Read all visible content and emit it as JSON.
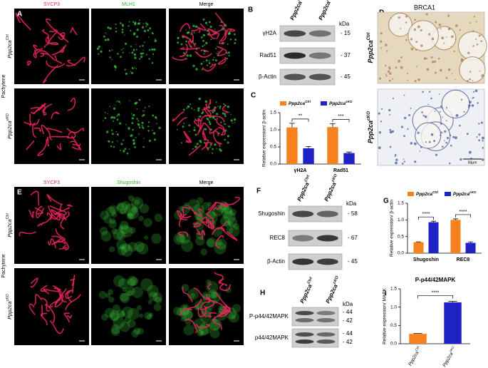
{
  "common": {
    "gene": "Ppp2ca",
    "ctrl": "Ctrl",
    "cko": "cKO",
    "ko": "KO",
    "stage": "Pachytene",
    "kda": "kDa"
  },
  "panel_a": {
    "letter": "A",
    "headers": [
      "SYCP3",
      "MLH1",
      "Merge"
    ]
  },
  "panel_b": {
    "letter": "B",
    "rows": [
      {
        "label": "γH2A",
        "kda": "- 15"
      },
      {
        "label": "Rad51",
        "kda": "- 37"
      },
      {
        "label": "β-Actin",
        "kda": "- 45"
      }
    ]
  },
  "panel_c": {
    "letter": "C"
  },
  "panel_d": {
    "letter": "D",
    "title": "BRCA1",
    "scale_bar": "50μm"
  },
  "panel_e": {
    "letter": "E",
    "headers": [
      "SYCP3",
      "Shugoshin",
      "Merge"
    ]
  },
  "panel_f": {
    "letter": "F",
    "rows": [
      {
        "label": "Shugoshin",
        "kda": "- 58"
      },
      {
        "label": "REC8",
        "kda": "- 67"
      },
      {
        "label": "β-Actin",
        "kda": "- 45"
      }
    ]
  },
  "panel_g": {
    "letter": "G"
  },
  "panel_h": {
    "letter": "H",
    "rows": [
      {
        "label": "P-p44/42MAPK",
        "kda": [
          "- 44",
          "- 42"
        ]
      },
      {
        "label": "p44/42MAPK",
        "kda": [
          "- 44",
          "- 42"
        ]
      }
    ]
  },
  "panel_i": {
    "letter": "I"
  },
  "chart_data": [
    {
      "type": "bar",
      "y_label": "Relative expression/ β-actin",
      "categories": [
        "γH2A",
        "Rad51"
      ],
      "series": [
        {
          "name": "Ppp2ca",
          "name_sup": "Ctrl",
          "color": "#f5821f",
          "values": [
            1.07,
            1.08
          ],
          "errors": [
            0.12,
            0.1
          ]
        },
        {
          "name": "Ppp2ca",
          "name_sup": "cKO",
          "color": "#1f22c4",
          "values": [
            0.46,
            0.32
          ],
          "errors": [
            0.05,
            0.03
          ]
        }
      ],
      "ylim": [
        0,
        1.5
      ],
      "yticks": [
        {
          "value": 0,
          "label": "0.0"
        },
        0.5,
        {
          "value": 1,
          "label": "1.0"
        },
        1.5
      ],
      "significance": [
        "**",
        "***"
      ]
    },
    {
      "type": "bar",
      "y_label": "Relative expression/ β-actin",
      "categories": [
        "Shugoshin",
        "REC8"
      ],
      "series": [
        {
          "name": "Ppp2ca",
          "name_sup": "Ctrl",
          "color": "#f5821f",
          "values": [
            0.33,
            1.0
          ],
          "errors": [
            0.01,
            0.03
          ]
        },
        {
          "name": "Ppp2ca",
          "name_sup": "cKO",
          "color": "#1f22c4",
          "values": [
            0.93,
            0.31
          ],
          "errors": [
            0.03,
            0.03
          ]
        }
      ],
      "ylim": [
        0,
        1.5
      ],
      "yticks": [
        {
          "value": 0,
          "label": "0.0"
        },
        0.5,
        {
          "value": 1,
          "label": "1.0"
        },
        1.5
      ],
      "significance": [
        "****",
        "****"
      ]
    },
    {
      "type": "bar",
      "title": "P-p44/42MAPK",
      "y_label": "Relative expression/ MAPK",
      "categories": [
        "Ppp2ca",
        "Ppp2ca"
      ],
      "category_sups": [
        "Ctrl",
        "cKO"
      ],
      "values": [
        0.27,
        1.13
      ],
      "errors": [
        0.01,
        0.03
      ],
      "colors": [
        "#f5821f",
        "#1f22c4"
      ],
      "ylim": [
        0,
        1.5
      ],
      "yticks": [
        {
          "value": 0,
          "label": "0.0"
        },
        0.5,
        {
          "value": 1,
          "label": "1.0"
        },
        1.5
      ],
      "significance": [
        "****"
      ]
    }
  ]
}
